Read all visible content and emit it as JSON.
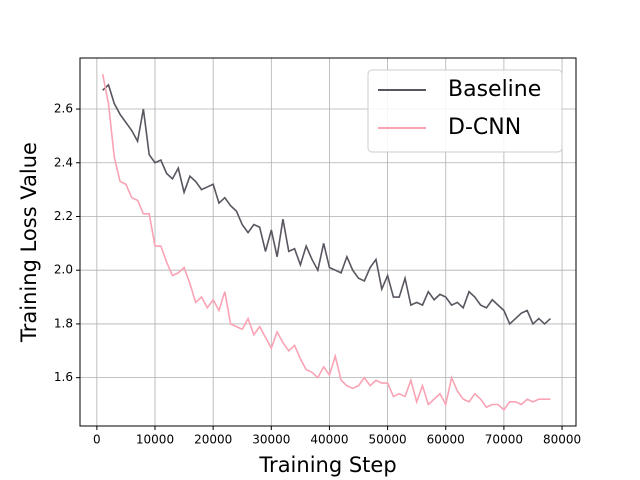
{
  "chart_data": {
    "type": "line",
    "xlabel": "Training Step",
    "ylabel": "Training Loss Value",
    "x": [
      1000,
      2000,
      3000,
      4000,
      5000,
      6000,
      7000,
      8000,
      9000,
      10000,
      11000,
      12000,
      13000,
      14000,
      15000,
      16000,
      17000,
      18000,
      19000,
      20000,
      21000,
      22000,
      23000,
      24000,
      25000,
      26000,
      27000,
      28000,
      29000,
      30000,
      31000,
      32000,
      33000,
      34000,
      35000,
      36000,
      37000,
      38000,
      39000,
      40000,
      41000,
      42000,
      43000,
      44000,
      45000,
      46000,
      47000,
      48000,
      49000,
      50000,
      51000,
      52000,
      53000,
      54000,
      55000,
      56000,
      57000,
      58000,
      59000,
      60000,
      61000,
      62000,
      63000,
      64000,
      65000,
      66000,
      67000,
      68000,
      69000,
      70000,
      71000,
      72000,
      73000,
      74000,
      75000,
      76000,
      77000,
      78000
    ],
    "series": [
      {
        "name": "Baseline",
        "color": "#5b5560",
        "values": [
          2.67,
          2.69,
          2.62,
          2.58,
          2.55,
          2.52,
          2.48,
          2.6,
          2.43,
          2.4,
          2.41,
          2.36,
          2.34,
          2.38,
          2.29,
          2.35,
          2.33,
          2.3,
          2.31,
          2.32,
          2.25,
          2.27,
          2.24,
          2.22,
          2.17,
          2.14,
          2.17,
          2.16,
          2.07,
          2.15,
          2.05,
          2.19,
          2.07,
          2.08,
          2.02,
          2.09,
          2.04,
          2.0,
          2.1,
          2.01,
          2.0,
          1.99,
          2.05,
          2.0,
          1.97,
          1.96,
          2.01,
          2.04,
          1.93,
          1.98,
          1.9,
          1.9,
          1.97,
          1.87,
          1.88,
          1.87,
          1.92,
          1.89,
          1.91,
          1.9,
          1.87,
          1.88,
          1.86,
          1.92,
          1.9,
          1.87,
          1.86,
          1.89,
          1.87,
          1.85,
          1.8,
          1.82,
          1.84,
          1.85,
          1.8,
          1.82,
          1.8,
          1.82
        ]
      },
      {
        "name": "D-CNN",
        "color": "#f9a3b4",
        "values": [
          2.73,
          2.62,
          2.42,
          2.33,
          2.32,
          2.27,
          2.26,
          2.21,
          2.21,
          2.09,
          2.09,
          2.03,
          1.98,
          1.99,
          2.01,
          1.95,
          1.88,
          1.9,
          1.86,
          1.89,
          1.85,
          1.92,
          1.8,
          1.79,
          1.78,
          1.82,
          1.76,
          1.79,
          1.75,
          1.71,
          1.77,
          1.73,
          1.7,
          1.72,
          1.67,
          1.63,
          1.62,
          1.6,
          1.64,
          1.61,
          1.68,
          1.59,
          1.57,
          1.56,
          1.57,
          1.6,
          1.57,
          1.59,
          1.58,
          1.58,
          1.53,
          1.54,
          1.53,
          1.59,
          1.51,
          1.57,
          1.5,
          1.52,
          1.54,
          1.5,
          1.6,
          1.55,
          1.52,
          1.51,
          1.54,
          1.52,
          1.49,
          1.5,
          1.5,
          1.48,
          1.51,
          1.51,
          1.5,
          1.52,
          1.51,
          1.52,
          1.52,
          1.52
        ]
      }
    ],
    "xlim": [
      -2900,
      82400
    ],
    "ylim": [
      1.42,
      2.79
    ],
    "xticks": [
      0,
      10000,
      20000,
      30000,
      40000,
      50000,
      60000,
      70000,
      80000
    ],
    "yticks": [
      1.6,
      1.8,
      {
        "value": 2,
        "label": "2.0"
      },
      2.2,
      2.4,
      2.6
    ],
    "grid": true,
    "legend": "upper right"
  }
}
